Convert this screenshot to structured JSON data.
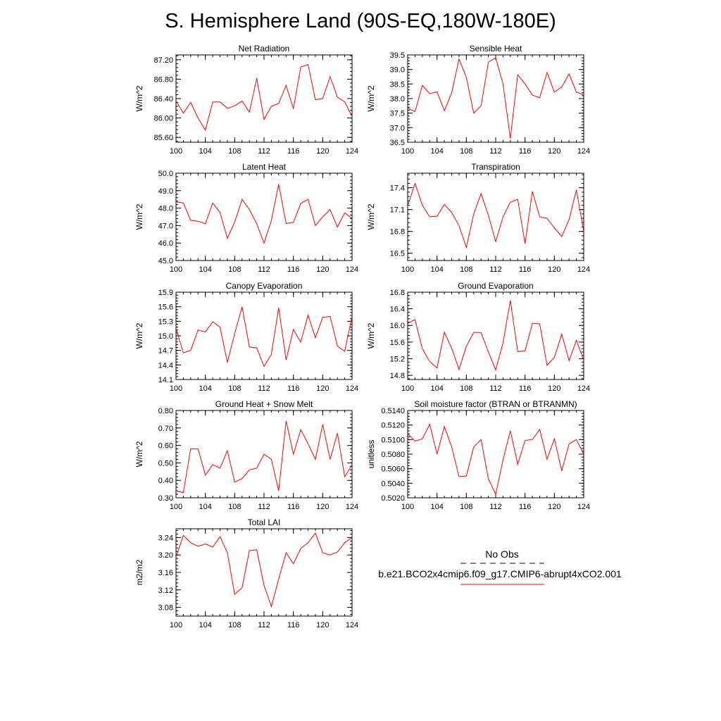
{
  "title": "S. Hemisphere Land (90S-EQ,180W-180E)",
  "colors": {
    "series": "#ff0000",
    "obs": "#000080",
    "axis": "#000000"
  },
  "chart_data": [
    {
      "type": "line",
      "title": "Net Radiation",
      "ylabel": "W/m^2",
      "ylim": [
        85.5,
        87.3
      ],
      "yticks": [
        "85.60",
        "86.00",
        "86.40",
        "86.80",
        "87.20"
      ],
      "xlim": [
        100,
        124
      ],
      "xticks": [
        "100",
        "104",
        "108",
        "112",
        "116",
        "120",
        "124"
      ],
      "x": [
        100,
        101,
        102,
        103,
        104,
        105,
        106,
        107,
        108,
        109,
        110,
        111,
        112,
        113,
        114,
        115,
        116,
        117,
        118,
        119,
        120,
        121,
        122,
        123,
        124
      ],
      "values": [
        86.35,
        86.1,
        86.32,
        86.0,
        85.75,
        86.33,
        86.33,
        86.2,
        86.25,
        86.35,
        86.12,
        86.82,
        85.97,
        86.24,
        86.3,
        86.67,
        86.19,
        87.05,
        87.1,
        86.38,
        86.4,
        86.85,
        86.43,
        86.33,
        86.03
      ]
    },
    {
      "type": "line",
      "title": "Sensible Heat",
      "ylabel": "W/m^2",
      "ylim": [
        36.5,
        39.5
      ],
      "yticks": [
        "36.5",
        "37.0",
        "37.5",
        "38.0",
        "38.5",
        "39.0",
        "39.5"
      ],
      "xlim": [
        100,
        124
      ],
      "xticks": [
        "100",
        "104",
        "108",
        "112",
        "116",
        "120",
        "124"
      ],
      "x": [
        100,
        101,
        102,
        103,
        104,
        105,
        106,
        107,
        108,
        109,
        110,
        111,
        112,
        113,
        114,
        115,
        116,
        117,
        118,
        119,
        120,
        121,
        122,
        123,
        124
      ],
      "values": [
        37.67,
        37.55,
        38.45,
        38.17,
        38.23,
        37.58,
        38.2,
        39.36,
        38.73,
        37.5,
        37.75,
        39.25,
        39.4,
        38.5,
        36.63,
        38.82,
        38.5,
        38.12,
        38.03,
        38.9,
        38.22,
        38.4,
        38.85,
        38.22,
        38.13
      ]
    },
    {
      "type": "line",
      "title": "Latent Heat",
      "ylabel": "W/m^2",
      "ylim": [
        45.0,
        50.0
      ],
      "yticks": [
        "45.0",
        "46.0",
        "47.0",
        "48.0",
        "49.0",
        "50.0"
      ],
      "xlim": [
        100,
        124
      ],
      "xticks": [
        "100",
        "104",
        "108",
        "112",
        "116",
        "120",
        "124"
      ],
      "x": [
        100,
        101,
        102,
        103,
        104,
        105,
        106,
        107,
        108,
        109,
        110,
        111,
        112,
        113,
        114,
        115,
        116,
        117,
        118,
        119,
        120,
        121,
        122,
        123,
        124
      ],
      "values": [
        48.35,
        48.3,
        47.3,
        47.25,
        47.1,
        48.3,
        47.75,
        46.27,
        47.2,
        48.5,
        47.92,
        47.1,
        46.0,
        47.3,
        49.37,
        47.12,
        47.18,
        48.27,
        48.5,
        47.0,
        47.5,
        47.92,
        46.92,
        47.73,
        47.4
      ]
    },
    {
      "type": "line",
      "title": "Transpiration",
      "ylabel": "W/m^2",
      "ylim": [
        16.4,
        17.6
      ],
      "yticks": [
        "16.5",
        "16.8",
        "17.1",
        "17.4"
      ],
      "xlim": [
        100,
        124
      ],
      "xticks": [
        "100",
        "104",
        "108",
        "112",
        "116",
        "120",
        "124"
      ],
      "x": [
        100,
        101,
        102,
        103,
        104,
        105,
        106,
        107,
        108,
        109,
        110,
        111,
        112,
        113,
        114,
        115,
        116,
        117,
        118,
        119,
        120,
        121,
        122,
        123,
        124
      ],
      "values": [
        17.15,
        17.46,
        17.16,
        17.0,
        17.01,
        17.17,
        17.06,
        16.88,
        16.58,
        17.04,
        17.32,
        17.02,
        16.66,
        17.0,
        17.2,
        17.24,
        16.63,
        17.35,
        17.0,
        16.98,
        16.85,
        16.73,
        16.96,
        17.37,
        16.8
      ]
    },
    {
      "type": "line",
      "title": "Canopy Evaporation",
      "ylabel": "W/m^2",
      "ylim": [
        14.1,
        15.9
      ],
      "yticks": [
        "14.1",
        "14.4",
        "14.7",
        "15.0",
        "15.3",
        "15.6",
        "15.9"
      ],
      "xlim": [
        100,
        124
      ],
      "xticks": [
        "100",
        "104",
        "108",
        "112",
        "116",
        "120",
        "124"
      ],
      "x": [
        100,
        101,
        102,
        103,
        104,
        105,
        106,
        107,
        108,
        109,
        110,
        111,
        112,
        113,
        114,
        115,
        116,
        117,
        118,
        119,
        120,
        121,
        122,
        123,
        124
      ],
      "values": [
        15.15,
        14.65,
        14.7,
        15.12,
        15.08,
        15.29,
        15.18,
        14.45,
        15.05,
        15.6,
        14.77,
        14.75,
        14.37,
        14.62,
        15.58,
        14.5,
        15.13,
        14.87,
        15.43,
        14.96,
        15.38,
        15.4,
        14.79,
        14.68,
        15.4
      ]
    },
    {
      "type": "line",
      "title": "Ground Evaporation",
      "ylabel": "W/m^2",
      "ylim": [
        14.7,
        16.8
      ],
      "yticks": [
        "14.8",
        "15.2",
        "15.6",
        "16.0",
        "16.4",
        "16.8"
      ],
      "xlim": [
        100,
        124
      ],
      "xticks": [
        "100",
        "104",
        "108",
        "112",
        "116",
        "120",
        "124"
      ],
      "x": [
        100,
        101,
        102,
        103,
        104,
        105,
        106,
        107,
        108,
        109,
        110,
        111,
        112,
        113,
        114,
        115,
        116,
        117,
        118,
        119,
        120,
        121,
        122,
        123,
        124
      ],
      "values": [
        16.05,
        16.14,
        15.44,
        15.13,
        14.98,
        15.84,
        15.45,
        14.94,
        15.5,
        15.83,
        15.83,
        15.36,
        14.93,
        15.58,
        16.6,
        15.37,
        15.39,
        16.05,
        16.04,
        15.04,
        15.23,
        15.79,
        15.15,
        15.64,
        15.16
      ]
    },
    {
      "type": "line",
      "title": "Ground Heat + Snow Melt",
      "ylabel": "W/m^2",
      "ylim": [
        0.3,
        0.8
      ],
      "yticks": [
        "0.30",
        "0.40",
        "0.50",
        "0.60",
        "0.70",
        "0.80"
      ],
      "xlim": [
        100,
        124
      ],
      "xticks": [
        "100",
        "104",
        "108",
        "112",
        "116",
        "120",
        "124"
      ],
      "x": [
        100,
        101,
        102,
        103,
        104,
        105,
        106,
        107,
        108,
        109,
        110,
        111,
        112,
        113,
        114,
        115,
        116,
        117,
        118,
        119,
        120,
        121,
        122,
        123,
        124
      ],
      "values": [
        0.34,
        0.33,
        0.58,
        0.58,
        0.43,
        0.49,
        0.47,
        0.57,
        0.39,
        0.41,
        0.46,
        0.47,
        0.55,
        0.52,
        0.34,
        0.74,
        0.55,
        0.69,
        0.61,
        0.52,
        0.72,
        0.52,
        0.67,
        0.42,
        0.49
      ]
    },
    {
      "type": "line",
      "title": "Soil moisture factor (BTRAN or BTRANMN)",
      "ylabel": "unitless",
      "ylim": [
        0.502,
        0.514
      ],
      "yticks": [
        "0.5020",
        "0.5040",
        "0.5060",
        "0.5080",
        "0.5100",
        "0.5120",
        "0.5140"
      ],
      "xlim": [
        100,
        124
      ],
      "xticks": [
        "100",
        "104",
        "108",
        "112",
        "116",
        "120",
        "124"
      ],
      "x": [
        100,
        101,
        102,
        103,
        104,
        105,
        106,
        107,
        108,
        109,
        110,
        111,
        112,
        113,
        114,
        115,
        116,
        117,
        118,
        119,
        120,
        121,
        122,
        123,
        124
      ],
      "values": [
        0.5108,
        0.5098,
        0.5101,
        0.5121,
        0.508,
        0.5118,
        0.509,
        0.5049,
        0.505,
        0.509,
        0.51,
        0.5046,
        0.5025,
        0.5072,
        0.5112,
        0.5066,
        0.5099,
        0.51,
        0.5114,
        0.5073,
        0.5101,
        0.5057,
        0.5094,
        0.51,
        0.508
      ]
    },
    {
      "type": "line",
      "title": "Total LAI",
      "ylabel": "m2/m2",
      "ylim": [
        3.06,
        3.26
      ],
      "yticks": [
        "3.08",
        "3.12",
        "3.16",
        "3.20",
        "3.24"
      ],
      "xlim": [
        100,
        124
      ],
      "xticks": [
        "100",
        "104",
        "108",
        "112",
        "116",
        "120",
        "124"
      ],
      "x": [
        100,
        101,
        102,
        103,
        104,
        105,
        106,
        107,
        108,
        109,
        110,
        111,
        112,
        113,
        114,
        115,
        116,
        117,
        118,
        119,
        120,
        121,
        122,
        123,
        124
      ],
      "values": [
        3.195,
        3.245,
        3.228,
        3.22,
        3.225,
        3.218,
        3.242,
        3.205,
        3.11,
        3.125,
        3.21,
        3.212,
        3.13,
        3.082,
        3.145,
        3.205,
        3.18,
        3.215,
        3.228,
        3.25,
        3.205,
        3.2,
        3.207,
        3.228,
        3.24
      ]
    }
  ],
  "legend": {
    "obs_label": "No Obs",
    "case_label": "b.e21.BCO2x4cmip6.f09_g17.CMIP6-abrupt4xCO2.001"
  }
}
